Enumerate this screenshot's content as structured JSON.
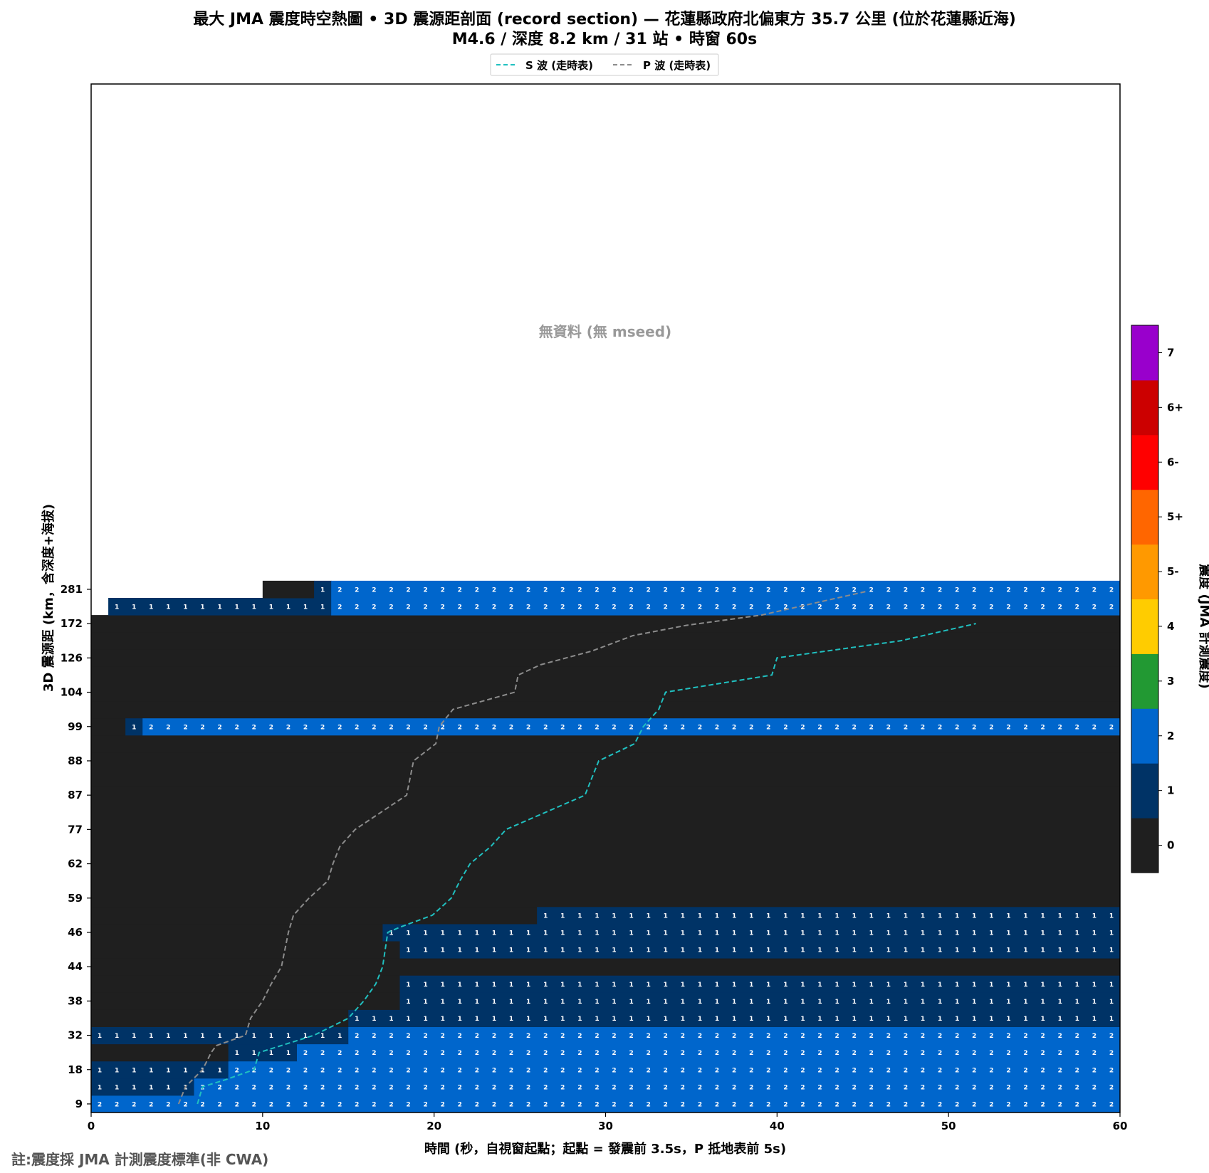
{
  "chart_data": {
    "type": "heatmap",
    "title": "最大 JMA 震度時空熱圖 • 3D 震源距剖面 (record section) — 花蓮縣政府北偏東方  35.7 公里 (位於花蓮縣近海)",
    "subtitle": "M4.6 / 深度 8.2 km / 31 站 • 時窗 60s",
    "xlabel": "時間 (秒，自視窗起點；起點 = 發震前 3.5s，P 抵地表前 5s)",
    "ylabel": "3D 震源距 (km，含深度+海拔)",
    "xlim": [
      0,
      60
    ],
    "x_ticks": [
      "0",
      "10",
      "20",
      "30",
      "40",
      "50",
      "60"
    ],
    "y_tick_labels": [
      "9",
      "18",
      "32",
      "38",
      "44",
      "46",
      "59",
      "62",
      "77",
      "87",
      "88",
      "99",
      "104",
      "126",
      "172",
      "281"
    ],
    "colorbar": {
      "label": "震度 (JMA 計測震度)",
      "levels": [
        "0",
        "1",
        "2",
        "3",
        "4",
        "5-",
        "5+",
        "6-",
        "6+",
        "7"
      ],
      "colors": [
        "#1f1f1f",
        "#003366",
        "#0066cc",
        "#229933",
        "#ffcc00",
        "#ff9900",
        "#ff6600",
        "#ff0000",
        "#cc0000",
        "#9900cc"
      ]
    },
    "no_data_text": "無資料 (無 mseed)",
    "legend": [
      {
        "name": "S 波 (走時表)",
        "color": "#20c0c0"
      },
      {
        "name": "P 波 (走時表)",
        "color": "#8c8c8c"
      }
    ],
    "rows": [
      {
        "segments": [
          [
            0,
            6,
            2
          ],
          [
            6,
            60,
            2
          ]
        ]
      },
      {
        "segments": [
          [
            0,
            6,
            1
          ],
          [
            6,
            60,
            2
          ]
        ]
      },
      {
        "segments": [
          [
            0,
            8,
            1
          ],
          [
            8,
            60,
            2
          ]
        ]
      },
      {
        "segments": [
          [
            0,
            8,
            0
          ],
          [
            8,
            12,
            1
          ],
          [
            12,
            60,
            2
          ]
        ]
      },
      {
        "segments": [
          [
            0,
            15,
            1
          ],
          [
            15,
            60,
            2
          ]
        ]
      },
      {
        "segments": [
          [
            0,
            15,
            0
          ],
          [
            15,
            60,
            1
          ]
        ]
      },
      {
        "segments": [
          [
            0,
            18,
            0
          ],
          [
            18,
            60,
            1
          ]
        ]
      },
      {
        "segments": [
          [
            0,
            18,
            0
          ],
          [
            18,
            60,
            1
          ]
        ]
      },
      {
        "segments": [
          [
            0,
            60,
            0
          ]
        ]
      },
      {
        "segments": [
          [
            0,
            18,
            0
          ],
          [
            18,
            60,
            1
          ]
        ]
      },
      {
        "segments": [
          [
            0,
            17,
            0
          ],
          [
            17,
            60,
            1
          ]
        ]
      },
      {
        "segments": [
          [
            0,
            26,
            0
          ],
          [
            26,
            60,
            1
          ]
        ]
      },
      {
        "segments": [
          [
            0,
            60,
            0
          ]
        ]
      },
      {
        "segments": [
          [
            0,
            60,
            0
          ]
        ]
      },
      {
        "segments": [
          [
            0,
            60,
            0
          ]
        ]
      },
      {
        "segments": [
          [
            0,
            60,
            0
          ]
        ]
      },
      {
        "segments": [
          [
            0,
            60,
            0
          ]
        ]
      },
      {
        "segments": [
          [
            0,
            60,
            0
          ]
        ]
      },
      {
        "segments": [
          [
            0,
            60,
            0
          ]
        ]
      },
      {
        "segments": [
          [
            0,
            60,
            0
          ]
        ]
      },
      {
        "segments": [
          [
            0,
            60,
            0
          ]
        ]
      },
      {
        "segments": [
          [
            0,
            60,
            0
          ]
        ]
      },
      {
        "segments": [
          [
            0,
            2,
            0
          ],
          [
            2,
            3,
            1
          ],
          [
            3,
            60,
            2
          ]
        ]
      },
      {
        "segments": [
          [
            0,
            60,
            0
          ]
        ]
      },
      {
        "segments": [
          [
            0,
            60,
            0
          ]
        ]
      },
      {
        "segments": [
          [
            0,
            60,
            0
          ]
        ]
      },
      {
        "segments": [
          [
            0,
            60,
            0
          ]
        ]
      },
      {
        "segments": [
          [
            0,
            60,
            0
          ]
        ]
      },
      {
        "segments": [
          [
            0,
            60,
            0
          ]
        ]
      },
      {
        "segments": [
          [
            0,
            1,
            -1
          ],
          [
            1,
            14,
            1
          ],
          [
            14,
            60,
            2
          ]
        ]
      },
      {
        "segments": [
          [
            0,
            10,
            -1
          ],
          [
            10,
            13,
            0
          ],
          [
            13,
            14,
            1
          ],
          [
            14,
            60,
            2
          ]
        ]
      }
    ],
    "y_tick_rows": [
      0,
      2,
      4,
      6,
      8,
      10,
      12,
      14,
      16,
      18,
      20,
      22,
      24,
      26,
      28,
      30
    ],
    "p_wave": [
      [
        5.1,
        0
      ],
      [
        5.5,
        1
      ],
      [
        6.5,
        2
      ],
      [
        7,
        3
      ],
      [
        7.3,
        3.4
      ],
      [
        9,
        4
      ],
      [
        9.3,
        5
      ],
      [
        10,
        6
      ],
      [
        10.5,
        7
      ],
      [
        11.1,
        8
      ],
      [
        11.5,
        10
      ],
      [
        11.8,
        11
      ],
      [
        12.7,
        12
      ],
      [
        13.8,
        13
      ],
      [
        14.1,
        14
      ],
      [
        14.5,
        15
      ],
      [
        15.4,
        16
      ],
      [
        18.4,
        18
      ],
      [
        18.8,
        20
      ],
      [
        20.1,
        21
      ],
      [
        20.3,
        22
      ],
      [
        21.1,
        23
      ],
      [
        24.7,
        24
      ],
      [
        24.9,
        25
      ],
      [
        26.2,
        25.6
      ],
      [
        29.2,
        26.4
      ],
      [
        31.6,
        27.3
      ],
      [
        34.7,
        27.9
      ],
      [
        39.1,
        28.5
      ],
      [
        45.3,
        29.9
      ]
    ],
    "s_wave": [
      [
        6.2,
        0
      ],
      [
        6.5,
        1
      ],
      [
        7.8,
        1.4
      ],
      [
        9.5,
        2
      ],
      [
        9.8,
        3
      ],
      [
        13,
        4
      ],
      [
        15,
        5
      ],
      [
        15.9,
        6
      ],
      [
        16.6,
        7
      ],
      [
        17,
        8
      ],
      [
        17.3,
        10
      ],
      [
        18,
        10.3
      ],
      [
        19.9,
        11
      ],
      [
        21,
        12
      ],
      [
        21.5,
        13
      ],
      [
        22.1,
        14
      ],
      [
        23.3,
        15
      ],
      [
        24.2,
        16
      ],
      [
        28.8,
        18
      ],
      [
        29.2,
        19
      ],
      [
        29.6,
        20
      ],
      [
        31.7,
        21
      ],
      [
        32.2,
        22
      ],
      [
        33.1,
        23
      ],
      [
        33.5,
        24
      ],
      [
        39.7,
        25
      ],
      [
        40.0,
        26
      ],
      [
        47.2,
        27
      ],
      [
        51.6,
        28
      ]
    ]
  },
  "footnote": "註:震度採 JMA 計測震度標準(非 CWA)"
}
